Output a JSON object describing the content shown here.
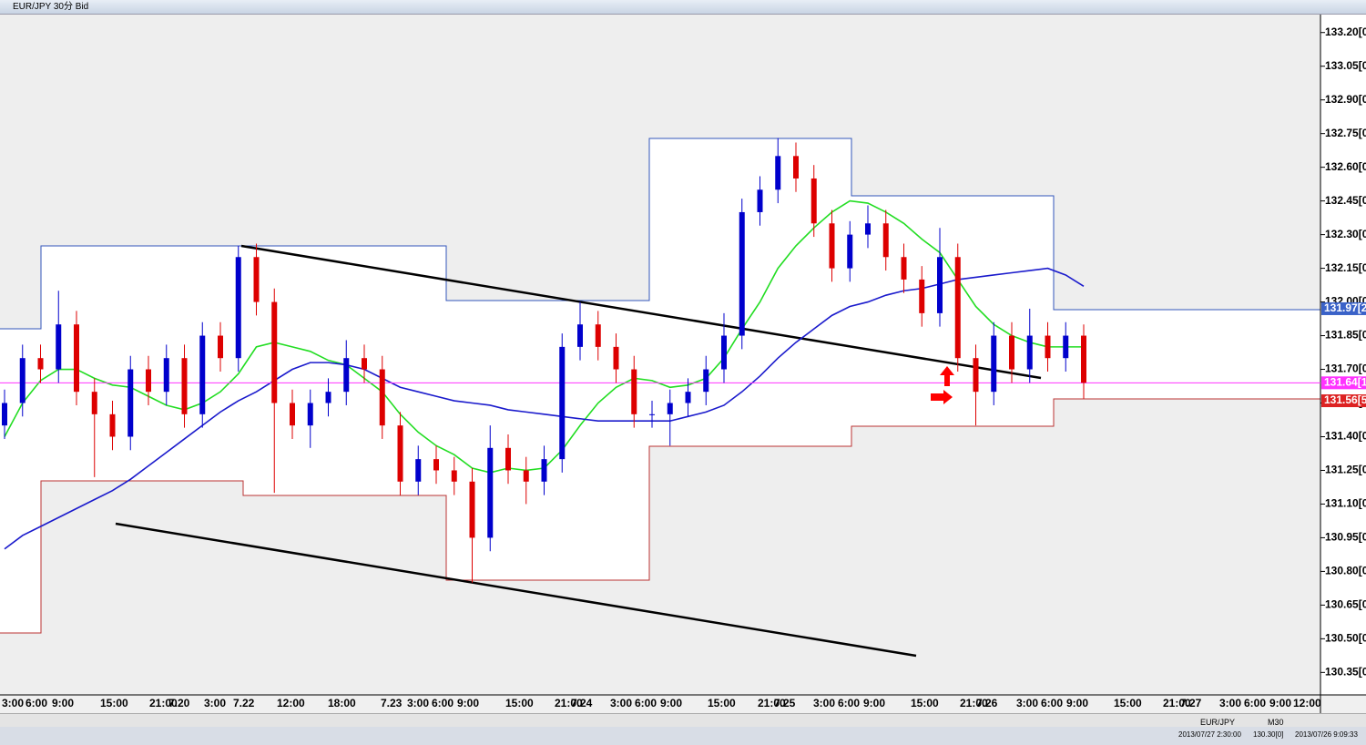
{
  "window_title": "EUR/JPY 30分 Bid",
  "chart_data": {
    "type": "candlestick",
    "ylim": [
      130.25,
      133.28
    ],
    "yticks": [
      {
        "value": 133.2,
        "label": "133.20[0"
      },
      {
        "value": 133.05,
        "label": "133.05[0"
      },
      {
        "value": 132.9,
        "label": "132.90[0"
      },
      {
        "value": 132.75,
        "label": "132.75[0"
      },
      {
        "value": 132.6,
        "label": "132.60[0"
      },
      {
        "value": 132.45,
        "label": "132.45[0"
      },
      {
        "value": 132.3,
        "label": "132.30[0"
      },
      {
        "value": 132.15,
        "label": "132.15[0"
      },
      {
        "value": 132.0,
        "label": "132.00[0"
      },
      {
        "value": 131.85,
        "label": "131.85[0"
      },
      {
        "value": 131.7,
        "label": "131.70[0"
      },
      {
        "value": 131.55,
        "label": "131.55[0"
      },
      {
        "value": 131.4,
        "label": "131.40[0"
      },
      {
        "value": 131.25,
        "label": "131.25[0"
      },
      {
        "value": 131.1,
        "label": "131.10[0"
      },
      {
        "value": 130.95,
        "label": "130.95[0"
      },
      {
        "value": 130.8,
        "label": "130.80[0"
      },
      {
        "value": 130.65,
        "label": "130.65[0"
      },
      {
        "value": 130.5,
        "label": "130.50[0"
      },
      {
        "value": 130.35,
        "label": "130.35[0"
      }
    ],
    "x_labels": [
      "3:00",
      "6:00",
      "9:00",
      "15:00",
      "21:00",
      "7.20",
      "3:00",
      "7.22",
      "12:00",
      "18:00",
      "7.23",
      "3:00",
      "6:00",
      "9:00",
      "15:00",
      "21:00",
      "7.24",
      "3:00",
      "6:00",
      "9:00",
      "15:00",
      "21:00",
      "7.25",
      "3:00",
      "6:00",
      "9:00",
      "15:00",
      "21:00",
      "7.26",
      "3:00",
      "6:00",
      "9:00",
      "15:00",
      "21:00",
      "7.27",
      "3:00",
      "6:00",
      "9:00",
      "12:00"
    ],
    "up_color": "#0000cc",
    "down_color": "#dd0000",
    "open": [
      131.45,
      131.55,
      131.75,
      131.7,
      131.9,
      131.6,
      131.5,
      131.4,
      131.7,
      131.6,
      131.75,
      131.5,
      131.85,
      131.75,
      132.2,
      132.0,
      131.55,
      131.45,
      131.55,
      131.6,
      131.75,
      131.7,
      131.45,
      131.2,
      131.3,
      131.25,
      131.2,
      130.95,
      131.35,
      131.25,
      131.2,
      131.3,
      131.8,
      131.9,
      131.8,
      131.7,
      131.5,
      131.5,
      131.55,
      131.6,
      131.7,
      131.85,
      132.4,
      132.5,
      132.65,
      132.55,
      132.35,
      132.15,
      132.3,
      132.35,
      132.2,
      132.1,
      131.95,
      132.2,
      131.75,
      131.6,
      131.85,
      131.7,
      131.85,
      131.75,
      131.85
    ],
    "high": [
      131.61,
      131.81,
      131.81,
      132.05,
      131.96,
      131.66,
      131.56,
      131.76,
      131.76,
      131.81,
      131.81,
      131.91,
      131.91,
      132.25,
      132.26,
      132.06,
      131.61,
      131.61,
      131.66,
      131.83,
      131.81,
      131.76,
      131.51,
      131.36,
      131.36,
      131.31,
      131.26,
      131.45,
      131.41,
      131.31,
      131.36,
      131.86,
      132.0,
      131.96,
      131.86,
      131.76,
      131.56,
      131.61,
      131.66,
      131.76,
      131.95,
      132.46,
      132.56,
      132.73,
      132.71,
      132.61,
      132.41,
      132.36,
      132.43,
      132.41,
      132.26,
      132.16,
      132.33,
      132.26,
      131.81,
      131.91,
      131.91,
      131.97,
      131.91,
      131.91,
      131.9
    ],
    "low": [
      131.39,
      131.49,
      131.64,
      131.64,
      131.54,
      131.22,
      131.34,
      131.34,
      131.54,
      131.54,
      131.44,
      131.44,
      131.69,
      131.69,
      131.94,
      131.15,
      131.39,
      131.35,
      131.49,
      131.54,
      131.64,
      131.39,
      131.14,
      131.14,
      131.19,
      131.14,
      130.75,
      130.89,
      131.19,
      131.1,
      131.14,
      131.24,
      131.74,
      131.74,
      131.64,
      131.44,
      131.44,
      131.36,
      131.49,
      131.54,
      131.64,
      131.79,
      132.34,
      132.44,
      132.49,
      132.29,
      132.09,
      132.09,
      132.24,
      132.14,
      132.04,
      131.89,
      131.89,
      131.69,
      131.45,
      131.54,
      131.64,
      131.64,
      131.69,
      131.69,
      131.57
    ],
    "close": [
      131.55,
      131.75,
      131.7,
      131.9,
      131.6,
      131.5,
      131.4,
      131.7,
      131.6,
      131.75,
      131.5,
      131.85,
      131.75,
      132.2,
      132.0,
      131.55,
      131.45,
      131.55,
      131.6,
      131.75,
      131.7,
      131.45,
      131.2,
      131.3,
      131.25,
      131.2,
      130.95,
      131.35,
      131.25,
      131.2,
      131.3,
      131.8,
      131.9,
      131.8,
      131.7,
      131.5,
      131.5,
      131.55,
      131.6,
      131.7,
      131.85,
      132.4,
      132.5,
      132.65,
      132.55,
      132.35,
      132.15,
      132.3,
      132.35,
      132.2,
      132.1,
      131.95,
      132.2,
      131.75,
      131.6,
      131.85,
      131.7,
      131.85,
      131.75,
      131.85,
      131.64
    ],
    "series": [
      {
        "color": "#22dd22",
        "values": [
          131.4,
          131.55,
          131.65,
          131.7,
          131.7,
          131.66,
          131.63,
          131.62,
          131.58,
          131.54,
          131.52,
          131.55,
          131.6,
          131.68,
          131.8,
          131.82,
          131.8,
          131.78,
          131.74,
          131.72,
          131.66,
          131.6,
          131.5,
          131.42,
          131.36,
          131.32,
          131.26,
          131.24,
          131.26,
          131.25,
          131.26,
          131.34,
          131.45,
          131.55,
          131.62,
          131.66,
          131.65,
          131.62,
          131.63,
          131.66,
          131.75,
          131.88,
          132.0,
          132.15,
          132.25,
          132.33,
          132.4,
          132.45,
          132.44,
          132.4,
          132.35,
          132.28,
          132.22,
          132.1,
          131.98,
          131.9,
          131.85,
          131.82,
          131.8,
          131.8,
          131.8
        ]
      },
      {
        "color": "#1a1acc",
        "values": [
          130.9,
          130.96,
          131.0,
          131.04,
          131.08,
          131.12,
          131.16,
          131.21,
          131.27,
          131.33,
          131.39,
          131.45,
          131.51,
          131.56,
          131.6,
          131.65,
          131.7,
          131.73,
          131.73,
          131.72,
          131.7,
          131.66,
          131.62,
          131.6,
          131.58,
          131.56,
          131.55,
          131.54,
          131.52,
          131.51,
          131.5,
          131.49,
          131.48,
          131.47,
          131.47,
          131.47,
          131.47,
          131.47,
          131.49,
          131.51,
          131.54,
          131.6,
          131.67,
          131.75,
          131.82,
          131.88,
          131.94,
          131.98,
          132.0,
          132.03,
          132.05,
          132.06,
          132.08,
          132.1,
          132.11,
          132.12,
          132.13,
          132.14,
          132.15,
          132.12,
          132.07
        ]
      }
    ],
    "price_tags": [
      {
        "value": 131.97,
        "label": "131.97[2",
        "color": "#3a62c8"
      },
      {
        "value": 131.64,
        "label": "131.64[1",
        "color": "#ff33ff"
      },
      {
        "value": 131.56,
        "label": "131.56[5",
        "color": "#dd2222"
      }
    ]
  },
  "status_bar": {
    "symbol": "EUR/JPY",
    "timeframe": "M30",
    "time": "2013/07/27 2:30:00",
    "price": "130.30[0]",
    "server_time": "2013/07/26 9:09:33"
  }
}
